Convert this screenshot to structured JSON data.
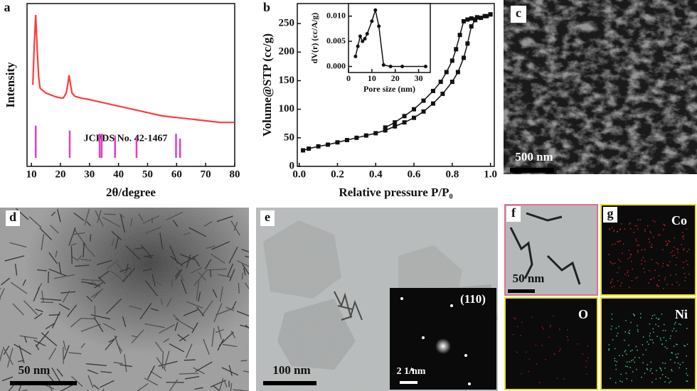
{
  "chart_data": [
    {
      "type": "line",
      "label": "a",
      "xlabel": "2θ/degree",
      "ylabel": "Intensity",
      "annotation": "JCPDS No. 42-1467",
      "xlim": [
        8.5,
        80
      ],
      "xticks": [
        10,
        20,
        30,
        40,
        50,
        60,
        70,
        80
      ],
      "ylim": [
        0,
        100
      ],
      "series": [
        {
          "color": "#ff3b3b",
          "x": [
            10.5,
            11,
            11.5,
            12,
            12.5,
            13,
            15,
            18,
            20,
            21,
            22,
            22.5,
            23,
            23.5,
            24,
            25,
            27,
            30,
            35,
            40,
            45,
            50,
            55,
            60,
            65,
            70,
            75,
            80
          ],
          "values": [
            50,
            75,
            93,
            72,
            55,
            48,
            45,
            43,
            42,
            42,
            45,
            50,
            56,
            50,
            45,
            43,
            42,
            41,
            39,
            37,
            35,
            33,
            31,
            30,
            29,
            28,
            27,
            27
          ]
        }
      ],
      "reference": {
        "color": "#e040c0",
        "x": [
          11.5,
          23.2,
          33.5,
          34.2,
          38.8,
          46.2,
          59.8,
          61.2
        ],
        "values": [
          25,
          22,
          20,
          20,
          19,
          18,
          20,
          17
        ]
      }
    },
    {
      "type": "line",
      "label": "b",
      "xlabel": "Relative pressure P/P₀",
      "ylabel": "Volume@STP (cc/g)",
      "xlim": [
        -0.01,
        1.02
      ],
      "xticks": [
        {
          "value": 0,
          "label": "0.0"
        },
        0.2,
        0.4,
        0.6,
        0.8,
        {
          "value": 1,
          "label": "1.0"
        }
      ],
      "ylim": [
        0,
        285
      ],
      "yticks": [
        0,
        50,
        100,
        150,
        200,
        250
      ],
      "marker": "square",
      "series": [
        {
          "color": "#111111",
          "x": [
            0.02,
            0.05,
            0.1,
            0.15,
            0.2,
            0.25,
            0.3,
            0.35,
            0.4,
            0.45,
            0.5,
            0.55,
            0.6,
            0.65,
            0.7,
            0.75,
            0.8,
            0.83,
            0.86,
            0.88,
            0.9,
            0.92,
            0.95,
            0.98,
            1.0
          ],
          "values": [
            28,
            31,
            35,
            38,
            42,
            46,
            50,
            54,
            58,
            63,
            70,
            77,
            85,
            96,
            110,
            127,
            148,
            165,
            190,
            215,
            245,
            256,
            260,
            263,
            266
          ]
        },
        {
          "color": "#111111",
          "x": [
            1.0,
            0.97,
            0.93,
            0.9,
            0.88,
            0.86,
            0.84,
            0.82,
            0.8,
            0.77,
            0.74,
            0.7,
            0.65,
            0.6,
            0.55,
            0.5,
            0.45
          ],
          "values": [
            266,
            263,
            261,
            259,
            257,
            254,
            230,
            205,
            185,
            165,
            148,
            132,
            115,
            100,
            88,
            77,
            68
          ]
        }
      ]
    },
    {
      "type": "line",
      "xlabel": "Pore size (nm)",
      "ylabel": "dV(r) (cc/A/g)",
      "xlim": [
        0,
        35
      ],
      "xticks": [
        0,
        10,
        20,
        30
      ],
      "ylim": [
        -0.0012,
        0.0125
      ],
      "yticks": [
        {
          "value": 0,
          "label": "0.000"
        },
        0.005,
        {
          "value": 0.01,
          "label": "0.010"
        }
      ],
      "marker": "circle",
      "series": [
        {
          "color": "#111111",
          "x": [
            3,
            4,
            5,
            6,
            7,
            8,
            10,
            11.5,
            13,
            15,
            18,
            23,
            33
          ],
          "values": [
            0.002,
            0.004,
            0.006,
            0.005,
            0.0055,
            0.0065,
            0.009,
            0.0112,
            0.008,
            0.0003,
            0,
            0,
            0
          ]
        }
      ]
    }
  ],
  "images": [
    {
      "label": "c",
      "scale_bar": "500 nm"
    },
    {
      "label": "d",
      "scale_bar": "50 nm"
    },
    {
      "label": "e",
      "scale_bar": "100 nm",
      "inset_index": "(110)",
      "inset_scale": "2 1/nm"
    },
    {
      "label": "f",
      "scale_bar": "50 nm"
    },
    {
      "label": "g",
      "maps": [
        "Co",
        "O",
        "Ni"
      ]
    }
  ]
}
